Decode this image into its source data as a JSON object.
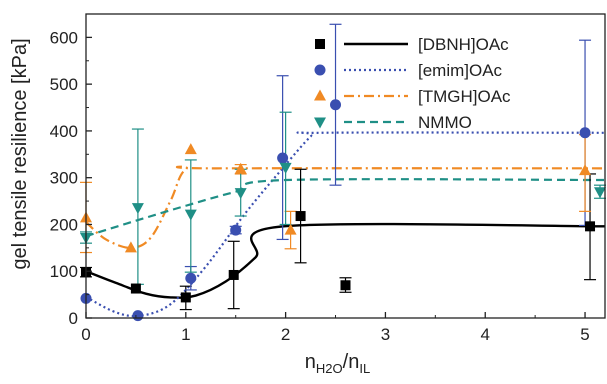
{
  "chart_data": {
    "type": "scatter",
    "title": "",
    "ylabel": "gel tensile resilience [kPa]",
    "xlabel": {
      "base": "n",
      "num_sub": "H2O",
      "den_sub": "IL"
    },
    "xlim": [
      0,
      5.2
    ],
    "ylim": [
      0,
      650
    ],
    "xticks": [
      "0",
      "1",
      "2",
      "3",
      "4",
      "5"
    ],
    "yticks": [
      "0",
      "100",
      "200",
      "300",
      "400",
      "500",
      "600"
    ],
    "legend_position": "top-right",
    "series": [
      {
        "name": "[DBNH]OAc",
        "color": "#000000",
        "marker": "square",
        "line_style": "solid",
        "points": [
          {
            "x": 0.0,
            "y": 98,
            "err_low": 88,
            "err_high": 108
          },
          {
            "x": 0.5,
            "y": 63,
            "err_low": 58,
            "err_high": 68
          },
          {
            "x": 1.0,
            "y": 44,
            "err_low": 18,
            "err_high": 68
          },
          {
            "x": 1.48,
            "y": 92,
            "err_low": 20,
            "err_high": 164
          },
          {
            "x": 2.15,
            "y": 218,
            "err_low": 118,
            "err_high": 318
          },
          {
            "x": 2.6,
            "y": 70,
            "err_low": 55,
            "err_high": 86
          },
          {
            "x": 5.05,
            "y": 196,
            "err_low": 82,
            "err_high": 308
          }
        ],
        "fit": [
          [
            0,
            100
          ],
          [
            0.3,
            75
          ],
          [
            0.6,
            52
          ],
          [
            0.85,
            44
          ],
          [
            1.1,
            48
          ],
          [
            1.4,
            78
          ],
          [
            1.7,
            130
          ],
          [
            1.98,
            196
          ],
          [
            5.2,
            196
          ]
        ]
      },
      {
        "name": "[emim]OAc",
        "color": "#3a4fb0",
        "marker": "circle",
        "line_style": "dotted",
        "points": [
          {
            "x": 0.0,
            "y": 42,
            "err_low": 38,
            "err_high": 46
          },
          {
            "x": 0.52,
            "y": 5,
            "err_low": 2,
            "err_high": 8
          },
          {
            "x": 1.05,
            "y": 85,
            "err_low": 60,
            "err_high": 110
          },
          {
            "x": 1.5,
            "y": 188,
            "err_low": 180,
            "err_high": 196
          },
          {
            "x": 1.97,
            "y": 342,
            "err_low": 168,
            "err_high": 518
          },
          {
            "x": 2.5,
            "y": 456,
            "err_low": 284,
            "err_high": 628
          },
          {
            "x": 5.0,
            "y": 396,
            "err_low": 198,
            "err_high": 594
          }
        ],
        "fit": [
          [
            0,
            45
          ],
          [
            0.3,
            12
          ],
          [
            0.55,
            5
          ],
          [
            0.85,
            30
          ],
          [
            1.2,
            110
          ],
          [
            1.6,
            225
          ],
          [
            1.95,
            315
          ],
          [
            2.25,
            388
          ],
          [
            2.35,
            396
          ],
          [
            5.2,
            396
          ]
        ]
      },
      {
        "name": "[TMGH]OAc",
        "color": "#f08a24",
        "marker": "triangle-up",
        "line_style": "dash-dot",
        "points": [
          {
            "x": 0.0,
            "y": 214,
            "err_low": 140,
            "err_high": 290
          },
          {
            "x": 0.45,
            "y": 150,
            "err_low": 146,
            "err_high": 156
          },
          {
            "x": 1.05,
            "y": 360,
            "err_low": 356,
            "err_high": 364
          },
          {
            "x": 1.55,
            "y": 318,
            "err_low": 308,
            "err_high": 328
          },
          {
            "x": 2.05,
            "y": 188,
            "err_low": 148,
            "err_high": 228
          },
          {
            "x": 5.0,
            "y": 315,
            "err_low": 228,
            "err_high": 392
          }
        ],
        "fit": [
          [
            0,
            205
          ],
          [
            0.2,
            168
          ],
          [
            0.45,
            150
          ],
          [
            0.65,
            172
          ],
          [
            0.85,
            252
          ],
          [
            1.0,
            318
          ],
          [
            1.3,
            320
          ],
          [
            5.2,
            320
          ]
        ]
      },
      {
        "name": "NMMO",
        "color": "#1f8f86",
        "marker": "triangle-down",
        "line_style": "dashed",
        "points": [
          {
            "x": 0.0,
            "y": 172,
            "err_low": 160,
            "err_high": 184
          },
          {
            "x": 0.52,
            "y": 236,
            "err_low": 72,
            "err_high": 404
          },
          {
            "x": 1.05,
            "y": 222,
            "err_low": 98,
            "err_high": 338
          },
          {
            "x": 1.55,
            "y": 268,
            "err_low": 218,
            "err_high": 318
          },
          {
            "x": 2.0,
            "y": 322,
            "err_low": 200,
            "err_high": 440
          },
          {
            "x": 5.15,
            "y": 270,
            "err_low": 256,
            "err_high": 284
          }
        ],
        "fit": [
          [
            0,
            175
          ],
          [
            0.5,
            208
          ],
          [
            1.0,
            240
          ],
          [
            1.5,
            270
          ],
          [
            2.0,
            295
          ],
          [
            5.2,
            295
          ]
        ]
      }
    ]
  }
}
